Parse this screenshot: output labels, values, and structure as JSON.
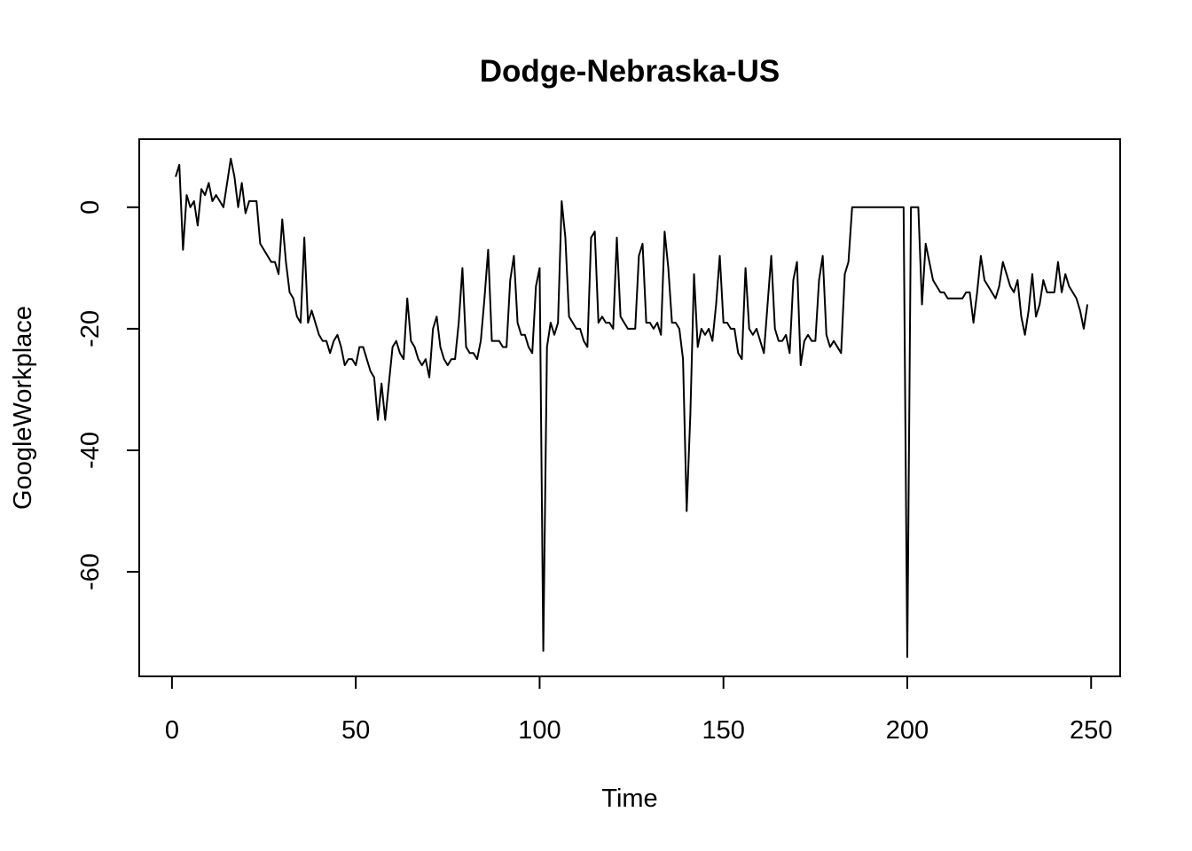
{
  "chart_data": {
    "type": "line",
    "title": "Dodge-Nebraska-US",
    "xlabel": "Time",
    "ylabel": "GoogleWorkplace",
    "xlim": [
      -8.9,
      257.9
    ],
    "ylim": [
      -77.2,
      11.2
    ],
    "x_ticks": [
      0,
      50,
      100,
      150,
      200,
      250
    ],
    "y_ticks": [
      0,
      -20,
      -40,
      -60
    ],
    "grid": false,
    "line_color": "#000000",
    "series": [
      {
        "x_start": 1,
        "values": [
          5,
          7,
          -7,
          2,
          0,
          1,
          -3,
          3,
          2,
          4,
          1,
          2,
          1,
          0,
          4,
          8,
          5,
          0,
          4,
          -1,
          1,
          1,
          1,
          -6,
          -7,
          -8,
          -9,
          -9,
          -11,
          -2,
          -9,
          -14,
          -15,
          -18,
          -19,
          -5,
          -19,
          -17,
          -19,
          -21,
          -22,
          -22,
          -24,
          -22,
          -21,
          -23,
          -26,
          -25,
          -25,
          -26,
          -23,
          -23,
          -25,
          -27,
          -28,
          -35,
          -29,
          -35,
          -29,
          -23,
          -22,
          -24,
          -25,
          -15,
          -22,
          -23,
          -25,
          -26,
          -25,
          -28,
          -20,
          -18,
          -23,
          -25,
          -26,
          -25,
          -25,
          -19,
          -10,
          -23,
          -24,
          -24,
          -25,
          -22,
          -15,
          -7,
          -22,
          -22,
          -22,
          -23,
          -23,
          -12,
          -8,
          -19,
          -21,
          -21,
          -23,
          -24,
          -13,
          -10,
          -73,
          -23,
          -19,
          -21,
          -19,
          1,
          -5,
          -18,
          -19,
          -20,
          -20,
          -22,
          -23,
          -5,
          -4,
          -19,
          -18,
          -19,
          -19,
          -20,
          -5,
          -18,
          -19,
          -20,
          -20,
          -20,
          -8,
          -6,
          -19,
          -19,
          -20,
          -19,
          -21,
          -4,
          -10,
          -19,
          -19,
          -20,
          -25,
          -50,
          -34,
          -11,
          -23,
          -20,
          -21,
          -20,
          -22,
          -16,
          -8,
          -19,
          -19,
          -20,
          -20,
          -24,
          -25,
          -10,
          -20,
          -21,
          -20,
          -22,
          -24,
          -16,
          -8,
          -20,
          -22,
          -22,
          -21,
          -24,
          -12,
          -9,
          -26,
          -22,
          -21,
          -22,
          -22,
          -12,
          -8,
          -21,
          -23,
          -22,
          -23,
          -24,
          -11,
          -9,
          0,
          0,
          0,
          0,
          0,
          0,
          0,
          0,
          0,
          0,
          0,
          0,
          0,
          0,
          0,
          -74,
          0,
          0,
          0,
          -16,
          -6,
          -9,
          -12,
          -13,
          -14,
          -14,
          -15,
          -15,
          -15,
          -15,
          -15,
          -14,
          -14,
          -19,
          -14,
          -8,
          -12,
          -13,
          -14,
          -15,
          -13,
          -9,
          -11,
          -13,
          -14,
          -12,
          -18,
          -21,
          -17,
          -11,
          -18,
          -16,
          -12,
          -14,
          -14,
          -14,
          -9,
          -14,
          -11,
          -13,
          -14,
          -15,
          -17,
          -20,
          -16
        ]
      }
    ]
  }
}
